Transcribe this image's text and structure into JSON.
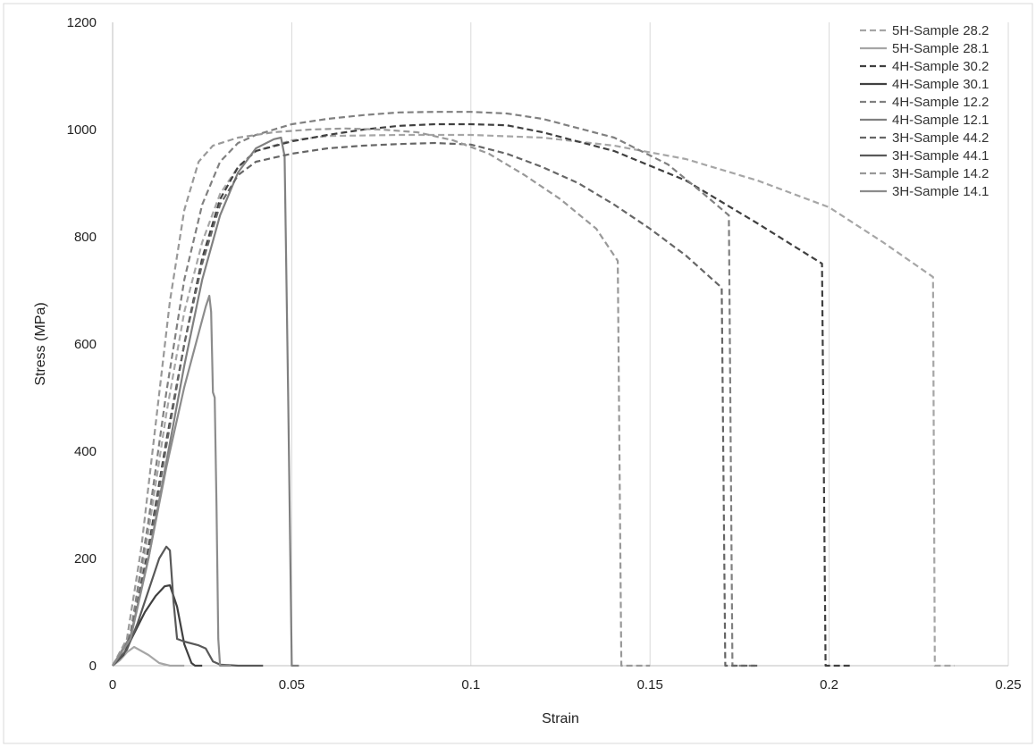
{
  "chart_data": {
    "type": "line",
    "title": "",
    "xlabel": "Strain",
    "ylabel": "Stress (MPa)",
    "xlim": [
      0,
      0.25
    ],
    "ylim": [
      0,
      1200
    ],
    "xticks": [
      0,
      0.05,
      0.1,
      0.15,
      0.2,
      0.25
    ],
    "xtick_labels": [
      "0",
      "0.05",
      "0.1",
      "0.15",
      "0.2",
      "0.25"
    ],
    "yticks": [
      0,
      200,
      400,
      600,
      800,
      1000,
      1200
    ],
    "ytick_labels": [
      "0",
      "200",
      "400",
      "600",
      "800",
      "1000",
      "1200"
    ],
    "grid": "vertical",
    "legend_position": "top-right",
    "series": [
      {
        "name": "5H-Sample 28.2",
        "color": "#a6a6a6",
        "dash": "dashed",
        "points": [
          [
            0,
            0
          ],
          [
            0.005,
            50
          ],
          [
            0.01,
            250
          ],
          [
            0.015,
            470
          ],
          [
            0.02,
            660
          ],
          [
            0.025,
            790
          ],
          [
            0.03,
            880
          ],
          [
            0.035,
            930
          ],
          [
            0.04,
            960
          ],
          [
            0.05,
            980
          ],
          [
            0.06,
            988
          ],
          [
            0.08,
            990
          ],
          [
            0.1,
            990
          ],
          [
            0.12,
            985
          ],
          [
            0.14,
            970
          ],
          [
            0.16,
            945
          ],
          [
            0.18,
            905
          ],
          [
            0.2,
            855
          ],
          [
            0.215,
            790
          ],
          [
            0.229,
            725
          ],
          [
            0.2295,
            0
          ],
          [
            0.235,
            0
          ]
        ]
      },
      {
        "name": "5H-Sample 28.1",
        "color": "#a6a6a6",
        "dash": "solid",
        "points": [
          [
            0,
            0
          ],
          [
            0.002,
            10
          ],
          [
            0.004,
            25
          ],
          [
            0.006,
            35
          ],
          [
            0.01,
            20
          ],
          [
            0.013,
            5
          ],
          [
            0.016,
            0
          ],
          [
            0.02,
            0
          ]
        ]
      },
      {
        "name": "4H-Sample 30.2",
        "color": "#404040",
        "dash": "dashed",
        "points": [
          [
            0,
            0
          ],
          [
            0.005,
            50
          ],
          [
            0.01,
            220
          ],
          [
            0.015,
            420
          ],
          [
            0.02,
            600
          ],
          [
            0.025,
            760
          ],
          [
            0.03,
            870
          ],
          [
            0.035,
            930
          ],
          [
            0.04,
            960
          ],
          [
            0.05,
            978
          ],
          [
            0.06,
            990
          ],
          [
            0.07,
            1000
          ],
          [
            0.08,
            1007
          ],
          [
            0.09,
            1010
          ],
          [
            0.1,
            1010
          ],
          [
            0.11,
            1008
          ],
          [
            0.12,
            995
          ],
          [
            0.14,
            960
          ],
          [
            0.16,
            905
          ],
          [
            0.18,
            825
          ],
          [
            0.198,
            750
          ],
          [
            0.199,
            0
          ],
          [
            0.206,
            0
          ]
        ]
      },
      {
        "name": "4H-Sample 30.1",
        "color": "#404040",
        "dash": "solid",
        "points": [
          [
            0,
            0
          ],
          [
            0.003,
            20
          ],
          [
            0.006,
            60
          ],
          [
            0.009,
            100
          ],
          [
            0.012,
            130
          ],
          [
            0.0145,
            148
          ],
          [
            0.016,
            150
          ],
          [
            0.018,
            110
          ],
          [
            0.02,
            40
          ],
          [
            0.022,
            5
          ],
          [
            0.023,
            0
          ],
          [
            0.025,
            0
          ]
        ]
      },
      {
        "name": "4H-Sample 12.2",
        "color": "#808080",
        "dash": "dashed",
        "points": [
          [
            0,
            0
          ],
          [
            0.005,
            60
          ],
          [
            0.01,
            270
          ],
          [
            0.015,
            510
          ],
          [
            0.02,
            720
          ],
          [
            0.025,
            860
          ],
          [
            0.03,
            940
          ],
          [
            0.035,
            975
          ],
          [
            0.04,
            990
          ],
          [
            0.05,
            1010
          ],
          [
            0.06,
            1020
          ],
          [
            0.07,
            1027
          ],
          [
            0.08,
            1032
          ],
          [
            0.09,
            1033
          ],
          [
            0.1,
            1033
          ],
          [
            0.11,
            1030
          ],
          [
            0.12,
            1020
          ],
          [
            0.14,
            985
          ],
          [
            0.155,
            935
          ],
          [
            0.165,
            880
          ],
          [
            0.172,
            840
          ],
          [
            0.173,
            0
          ],
          [
            0.18,
            0
          ]
        ]
      },
      {
        "name": "4H-Sample 12.1",
        "color": "#808080",
        "dash": "solid",
        "points": [
          [
            0,
            0
          ],
          [
            0.005,
            55
          ],
          [
            0.01,
            200
          ],
          [
            0.015,
            380
          ],
          [
            0.02,
            560
          ],
          [
            0.025,
            720
          ],
          [
            0.03,
            840
          ],
          [
            0.035,
            920
          ],
          [
            0.04,
            965
          ],
          [
            0.045,
            982
          ],
          [
            0.047,
            985
          ],
          [
            0.048,
            950
          ],
          [
            0.049,
            500
          ],
          [
            0.05,
            0
          ],
          [
            0.052,
            0
          ]
        ]
      },
      {
        "name": "3H-Sample 44.2",
        "color": "#666666",
        "dash": "dashed",
        "points": [
          [
            0,
            0
          ],
          [
            0.005,
            55
          ],
          [
            0.01,
            210
          ],
          [
            0.015,
            410
          ],
          [
            0.02,
            600
          ],
          [
            0.025,
            750
          ],
          [
            0.03,
            860
          ],
          [
            0.035,
            915
          ],
          [
            0.04,
            940
          ],
          [
            0.05,
            955
          ],
          [
            0.06,
            965
          ],
          [
            0.07,
            970
          ],
          [
            0.08,
            973
          ],
          [
            0.09,
            975
          ],
          [
            0.1,
            972
          ],
          [
            0.11,
            955
          ],
          [
            0.12,
            930
          ],
          [
            0.13,
            900
          ],
          [
            0.14,
            860
          ],
          [
            0.15,
            815
          ],
          [
            0.16,
            765
          ],
          [
            0.17,
            705
          ],
          [
            0.171,
            0
          ],
          [
            0.18,
            0
          ]
        ]
      },
      {
        "name": "3H-Sample 44.1",
        "color": "#595959",
        "dash": "solid",
        "points": [
          [
            0,
            0
          ],
          [
            0.004,
            30
          ],
          [
            0.007,
            80
          ],
          [
            0.01,
            140
          ],
          [
            0.013,
            200
          ],
          [
            0.015,
            222
          ],
          [
            0.016,
            215
          ],
          [
            0.017,
            120
          ],
          [
            0.018,
            50
          ],
          [
            0.02,
            45
          ],
          [
            0.024,
            38
          ],
          [
            0.026,
            32
          ],
          [
            0.028,
            8
          ],
          [
            0.03,
            2
          ],
          [
            0.035,
            0
          ],
          [
            0.042,
            0
          ]
        ]
      },
      {
        "name": "3H-Sample 14.2",
        "color": "#999999",
        "dash": "dashed",
        "points": [
          [
            0,
            0
          ],
          [
            0.004,
            50
          ],
          [
            0.008,
            220
          ],
          [
            0.012,
            450
          ],
          [
            0.016,
            680
          ],
          [
            0.02,
            850
          ],
          [
            0.024,
            940
          ],
          [
            0.028,
            970
          ],
          [
            0.035,
            985
          ],
          [
            0.045,
            995
          ],
          [
            0.055,
            1000
          ],
          [
            0.065,
            1002
          ],
          [
            0.075,
            1000
          ],
          [
            0.085,
            995
          ],
          [
            0.095,
            980
          ],
          [
            0.105,
            955
          ],
          [
            0.115,
            915
          ],
          [
            0.125,
            870
          ],
          [
            0.135,
            815
          ],
          [
            0.141,
            755
          ],
          [
            0.142,
            0
          ],
          [
            0.15,
            0
          ]
        ]
      },
      {
        "name": "3H-Sample 14.1",
        "color": "#8c8c8c",
        "dash": "solid",
        "points": [
          [
            0,
            0
          ],
          [
            0.005,
            50
          ],
          [
            0.01,
            200
          ],
          [
            0.015,
            370
          ],
          [
            0.02,
            520
          ],
          [
            0.024,
            620
          ],
          [
            0.026,
            670
          ],
          [
            0.027,
            690
          ],
          [
            0.0275,
            660
          ],
          [
            0.028,
            510
          ],
          [
            0.0285,
            500
          ],
          [
            0.029,
            300
          ],
          [
            0.0295,
            50
          ],
          [
            0.03,
            0
          ],
          [
            0.033,
            0
          ]
        ]
      }
    ]
  }
}
